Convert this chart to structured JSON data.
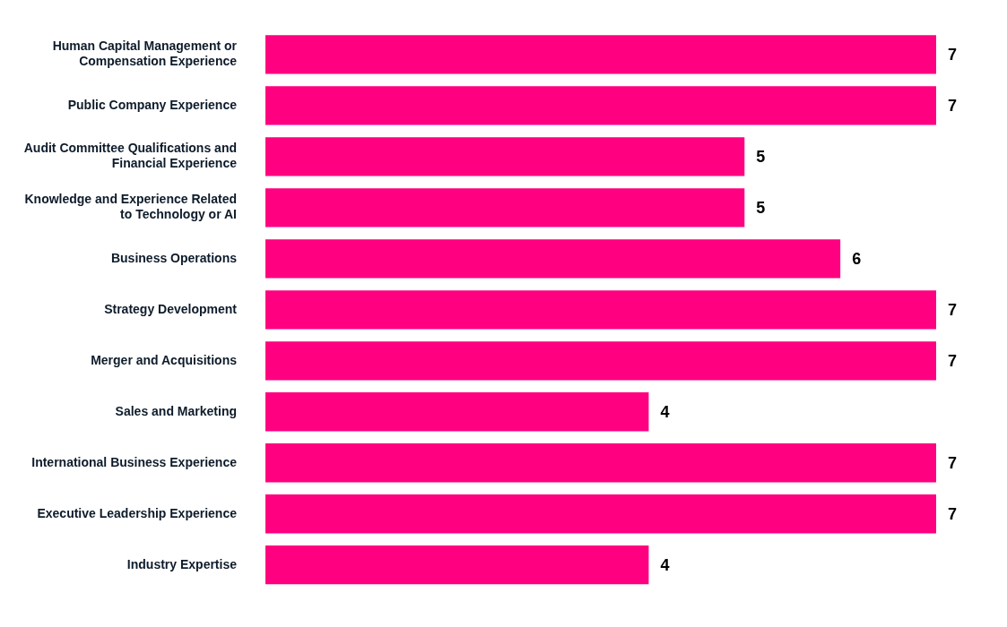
{
  "chart_data": {
    "type": "bar",
    "orientation": "horizontal",
    "data_labels": true,
    "tick_labels": "y",
    "categories": [
      "Human Capital Management or Compensation Experience",
      "Public Company Experience",
      "Audit Committee Qualifications and Financial Experience",
      "Knowledge and Experience Related to Technology or AI",
      "Business Operations",
      "Strategy Development",
      "Merger and Acquisitions",
      "Sales and Marketing",
      "International Business Experience",
      "Executive Leadership Experience",
      "Industry Expertise"
    ],
    "series": [
      {
        "color": "#ff0080",
        "values": [
          7,
          7,
          5,
          5,
          6,
          7,
          7,
          4,
          7,
          7,
          4
        ]
      }
    ]
  }
}
